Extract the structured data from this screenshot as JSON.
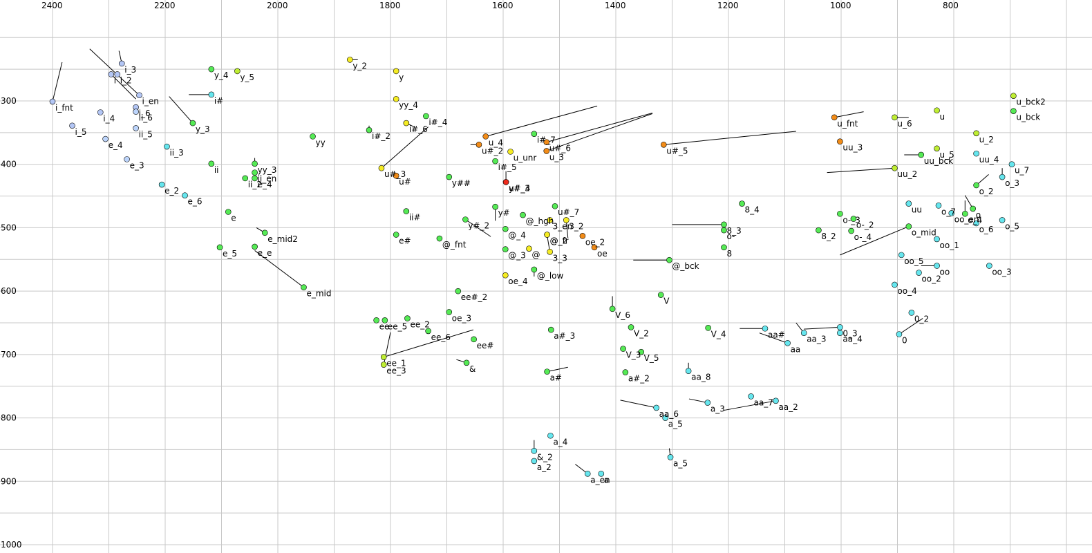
{
  "chart_data": {
    "type": "scatter",
    "title": "",
    "xlabel": "",
    "ylabel": "",
    "x_reversed": true,
    "y_reversed": true,
    "xlim": [
      2450,
      620
    ],
    "ylim": [
      210,
      1000
    ],
    "x_ticks": [
      2400,
      2200,
      2000,
      1800,
      1600,
      1400,
      1200,
      1000,
      800
    ],
    "y_ticks": [
      300,
      400,
      500,
      600,
      700,
      800,
      900,
      1000
    ],
    "x_tick_labels": [
      "2400",
      "2200",
      "2000",
      "1800",
      "1600",
      "1400",
      "1200",
      "1000",
      "800"
    ],
    "y_tick_labels": [
      "300",
      "400",
      "500",
      "600",
      "700",
      "800",
      "900",
      "1000"
    ],
    "grid": true,
    "colors": {
      "blue": "#b3c6f5",
      "lightblue": "#bcd4fb",
      "cyan": "#66e6ee",
      "green": "#55ea55",
      "yellowgreen": "#bfee33",
      "yellow": "#f5ec24",
      "orange": "#f28c18",
      "red": "#ee2a1c"
    },
    "points": [
      {
        "label": "i_fnt",
        "x": 2400,
        "y": 301,
        "color": "blue",
        "tx": 2383,
        "ty": 239
      },
      {
        "label": "i_5",
        "x": 2365,
        "y": 339,
        "color": "blue"
      },
      {
        "label": "i_4",
        "x": 2315,
        "y": 318,
        "color": "blue"
      },
      {
        "label": "i_3",
        "x": 2277,
        "y": 241,
        "color": "blue",
        "tx": 2282,
        "ty": 221
      },
      {
        "label": "i",
        "x": 2296,
        "y": 258,
        "color": "blue",
        "tx": 2252,
        "ty": 297
      },
      {
        "label": "i_2",
        "x": 2285,
        "y": 258,
        "color": "blue"
      },
      {
        "label": "i_en",
        "x": 2246,
        "y": 291,
        "color": "blue",
        "tx": 2334,
        "ty": 218
      },
      {
        "label": "i_6",
        "x": 2252,
        "y": 310,
        "color": "blue"
      },
      {
        "label": "ii_6",
        "x": 2252,
        "y": 317,
        "color": "lightblue"
      },
      {
        "label": "ii_5",
        "x": 2252,
        "y": 343,
        "color": "lightblue"
      },
      {
        "label": "e_4",
        "x": 2306,
        "y": 360,
        "color": "lightblue"
      },
      {
        "label": "ii_3",
        "x": 2197,
        "y": 372,
        "color": "cyan"
      },
      {
        "label": "e_3",
        "x": 2268,
        "y": 392,
        "color": "lightblue"
      },
      {
        "label": "e_2",
        "x": 2206,
        "y": 432,
        "color": "cyan"
      },
      {
        "label": "e_6",
        "x": 2165,
        "y": 449,
        "color": "cyan"
      },
      {
        "label": "y_4",
        "x": 2118,
        "y": 250,
        "color": "green"
      },
      {
        "label": "y_5",
        "x": 2072,
        "y": 253,
        "color": "yellowgreen"
      },
      {
        "label": "i#",
        "x": 2118,
        "y": 290,
        "color": "cyan",
        "tx": 2158,
        "ty": 290
      },
      {
        "label": "y_3",
        "x": 2151,
        "y": 335,
        "color": "green",
        "tx": 2193,
        "ty": 293
      },
      {
        "label": "ii",
        "x": 2118,
        "y": 399,
        "color": "green"
      },
      {
        "label": "yy_3",
        "x": 2041,
        "y": 399,
        "color": "green",
        "tx": 2041,
        "ty": 390
      },
      {
        "label": "ii_en",
        "x": 2041,
        "y": 413,
        "color": "green"
      },
      {
        "label": "ii_2",
        "x": 2058,
        "y": 422,
        "color": "green"
      },
      {
        "label": "e_4",
        "x": 2041,
        "y": 422,
        "color": "green"
      },
      {
        "label": "yy",
        "x": 1938,
        "y": 356,
        "color": "green"
      },
      {
        "label": "e",
        "x": 2088,
        "y": 475,
        "color": "green"
      },
      {
        "label": "e_mid2",
        "x": 2023,
        "y": 508,
        "color": "green",
        "tx": 2038,
        "ty": 500
      },
      {
        "label": "e_5",
        "x": 2103,
        "y": 531,
        "color": "green"
      },
      {
        "label": "e_e",
        "x": 2041,
        "y": 530,
        "color": "green"
      },
      {
        "label": "e_mid",
        "x": 1954,
        "y": 594,
        "color": "green",
        "tx": 2041,
        "ty": 536
      },
      {
        "label": "y_2",
        "x": 1872,
        "y": 235,
        "color": "yellow",
        "tx": 1858,
        "ty": 235
      },
      {
        "label": "y",
        "x": 1790,
        "y": 253,
        "color": "yellow"
      },
      {
        "label": "yy_4",
        "x": 1790,
        "y": 297,
        "color": "yellow"
      },
      {
        "label": "i#_2",
        "x": 1838,
        "y": 346,
        "color": "green",
        "tx": 1838,
        "ty": 339
      },
      {
        "label": "u#_3",
        "x": 1816,
        "y": 406,
        "color": "yellow",
        "tx": 1733,
        "ty": 341
      },
      {
        "label": "u#",
        "x": 1790,
        "y": 418,
        "color": "orange"
      },
      {
        "label": "ii#",
        "x": 1772,
        "y": 474,
        "color": "green"
      },
      {
        "label": "e#",
        "x": 1790,
        "y": 511,
        "color": "green"
      },
      {
        "label": "i#_6",
        "x": 1772,
        "y": 335,
        "color": "yellow",
        "tx": 1758,
        "ty": 341
      },
      {
        "label": "i#_4",
        "x": 1737,
        "y": 324,
        "color": "green"
      },
      {
        "label": "y##",
        "x": 1696,
        "y": 420,
        "color": "green"
      },
      {
        "label": "@_fnt",
        "x": 1713,
        "y": 517,
        "color": "green"
      },
      {
        "label": "oe_3",
        "x": 1696,
        "y": 633,
        "color": "green"
      },
      {
        "label": "ee#_2",
        "x": 1680,
        "y": 600,
        "color": "green"
      },
      {
        "label": "ee_2",
        "x": 1770,
        "y": 643,
        "color": "green"
      },
      {
        "label": "ee_5",
        "x": 1810,
        "y": 646,
        "color": "green"
      },
      {
        "label": "ee",
        "x": 1825,
        "y": 646,
        "color": "green"
      },
      {
        "label": "ee_6",
        "x": 1733,
        "y": 663,
        "color": "green"
      },
      {
        "label": "ee_1",
        "x": 1812,
        "y": 704,
        "color": "yellowgreen",
        "tx": 1653,
        "ty": 661
      },
      {
        "label": "ee_3",
        "x": 1812,
        "y": 716,
        "color": "yellowgreen",
        "tx": 1800,
        "ty": 665
      },
      {
        "label": "ee#",
        "x": 1652,
        "y": 676,
        "color": "green"
      },
      {
        "label": "&",
        "x": 1665,
        "y": 713,
        "color": "green",
        "tx": 1683,
        "ty": 708
      },
      {
        "label": "u_4",
        "x": 1631,
        "y": 356,
        "color": "orange",
        "tx": 1433,
        "ty": 308
      },
      {
        "label": "u#_2",
        "x": 1643,
        "y": 369,
        "color": "orange",
        "tx": 1658,
        "ty": 369
      },
      {
        "label": "u_unr",
        "x": 1587,
        "y": 380,
        "color": "yellow"
      },
      {
        "label": "i#_5",
        "x": 1614,
        "y": 395,
        "color": "green"
      },
      {
        "label": "y#_3",
        "x": 1595,
        "y": 428,
        "color": "red",
        "tx": 1595,
        "ty": 411
      },
      {
        "label": "u#_4",
        "x": 1595,
        "y": 428,
        "color": "red"
      },
      {
        "label": "y#",
        "x": 1614,
        "y": 467,
        "color": "green",
        "tx": 1614,
        "ty": 489
      },
      {
        "label": "y#_2",
        "x": 1667,
        "y": 487,
        "color": "green",
        "tx": 1622,
        "ty": 514
      },
      {
        "label": "@_4",
        "x": 1596,
        "y": 502,
        "color": "green"
      },
      {
        "label": "@_3",
        "x": 1596,
        "y": 534,
        "color": "green"
      },
      {
        "label": "oe_4",
        "x": 1596,
        "y": 575,
        "color": "yellow"
      },
      {
        "label": "@_hgh",
        "x": 1565,
        "y": 480,
        "color": "green"
      },
      {
        "label": "i#_7",
        "x": 1545,
        "y": 352,
        "color": "green"
      },
      {
        "label": "u#_6",
        "x": 1523,
        "y": 365,
        "color": "orange",
        "tx": 1335,
        "ty": 319
      },
      {
        "label": "u_3",
        "x": 1523,
        "y": 379,
        "color": "orange",
        "tx": 1335,
        "ty": 320
      },
      {
        "label": "u#_7",
        "x": 1508,
        "y": 466,
        "color": "green"
      },
      {
        "label": "3_en",
        "x": 1517,
        "y": 488,
        "color": "yellow"
      },
      {
        "label": "3_2",
        "x": 1488,
        "y": 488,
        "color": "yellow",
        "tx": 1485,
        "ty": 516
      },
      {
        "label": "@_2",
        "x": 1522,
        "y": 511,
        "color": "yellow"
      },
      {
        "label": "@_fr",
        "x": 1522,
        "y": 511,
        "color": "yellow"
      },
      {
        "label": "@",
        "x": 1554,
        "y": 533,
        "color": "yellow"
      },
      {
        "label": "3_3",
        "x": 1517,
        "y": 538,
        "color": "yellow",
        "tx": 1522,
        "ty": 512
      },
      {
        "label": "oe_2",
        "x": 1459,
        "y": 513,
        "color": "orange"
      },
      {
        "label": "oe",
        "x": 1438,
        "y": 531,
        "color": "orange"
      },
      {
        "label": "@_low",
        "x": 1545,
        "y": 566,
        "color": "green",
        "tx": 1545,
        "ty": 577
      },
      {
        "label": "a#_3",
        "x": 1515,
        "y": 661,
        "color": "green"
      },
      {
        "label": "a#",
        "x": 1522,
        "y": 727,
        "color": "green",
        "tx": 1485,
        "ty": 720
      },
      {
        "label": "a_4",
        "x": 1516,
        "y": 828,
        "color": "cyan"
      },
      {
        "label": "&_2",
        "x": 1545,
        "y": 852,
        "color": "cyan",
        "tx": 1545,
        "ty": 835
      },
      {
        "label": "a_2",
        "x": 1545,
        "y": 868,
        "color": "cyan"
      },
      {
        "label": "a_en",
        "x": 1450,
        "y": 888,
        "color": "cyan",
        "tx": 1472,
        "ty": 873
      },
      {
        "label": "a",
        "x": 1426,
        "y": 888,
        "color": "cyan"
      },
      {
        "label": "u#_5",
        "x": 1315,
        "y": 369,
        "color": "orange",
        "tx": 1080,
        "ty": 348
      },
      {
        "label": "8_4",
        "x": 1176,
        "y": 462,
        "color": "green"
      },
      {
        "label": "8_3",
        "x": 1208,
        "y": 495,
        "color": "green",
        "tx": 1300,
        "ty": 495
      },
      {
        "label": "o-",
        "x": 1208,
        "y": 504,
        "color": "green"
      },
      {
        "label": "8",
        "x": 1208,
        "y": 531,
        "color": "green"
      },
      {
        "label": "@_bck",
        "x": 1305,
        "y": 551,
        "color": "green",
        "tx": 1369,
        "ty": 551
      },
      {
        "label": "V",
        "x": 1320,
        "y": 606,
        "color": "green",
        "tx": 1320,
        "ty": 602
      },
      {
        "label": "V_6",
        "x": 1406,
        "y": 628,
        "color": "green",
        "tx": 1406,
        "ty": 608
      },
      {
        "label": "V_2",
        "x": 1373,
        "y": 657,
        "color": "green"
      },
      {
        "label": "V_4",
        "x": 1236,
        "y": 658,
        "color": "green"
      },
      {
        "label": "V_3",
        "x": 1387,
        "y": 691,
        "color": "green"
      },
      {
        "label": "V_5",
        "x": 1355,
        "y": 696,
        "color": "green"
      },
      {
        "label": "a#_2",
        "x": 1383,
        "y": 728,
        "color": "green"
      },
      {
        "label": "aa_8",
        "x": 1271,
        "y": 726,
        "color": "cyan",
        "tx": 1271,
        "ty": 713
      },
      {
        "label": "a_3",
        "x": 1237,
        "y": 776,
        "color": "cyan",
        "tx": 1270,
        "ty": 770
      },
      {
        "label": "aa_6",
        "x": 1328,
        "y": 784,
        "color": "cyan",
        "tx": 1392,
        "ty": 772
      },
      {
        "label": "a_5",
        "x": 1312,
        "y": 800,
        "color": "cyan"
      },
      {
        "label": "a_5",
        "x": 1303,
        "y": 862,
        "color": "cyan",
        "tx": 1305,
        "ty": 848
      },
      {
        "label": "aa_7",
        "x": 1160,
        "y": 766,
        "color": "cyan"
      },
      {
        "label": "aa_2",
        "x": 1116,
        "y": 773,
        "color": "cyan",
        "tx": 1208,
        "ty": 788
      },
      {
        "label": "aa#",
        "x": 1135,
        "y": 659,
        "color": "cyan",
        "tx": 1180,
        "ty": 659
      },
      {
        "label": "aa_3",
        "x": 1066,
        "y": 666,
        "color": "cyan",
        "tx": 1080,
        "ty": 650
      },
      {
        "label": "aa",
        "x": 1095,
        "y": 682,
        "color": "cyan",
        "tx": 1145,
        "ty": 666
      },
      {
        "label": "0_3",
        "x": 1002,
        "y": 657,
        "color": "cyan",
        "tx": 1066,
        "ty": 660
      },
      {
        "label": "aa_4",
        "x": 1002,
        "y": 666,
        "color": "cyan"
      },
      {
        "label": "0",
        "x": 897,
        "y": 668,
        "color": "cyan",
        "tx": 855,
        "ty": 643
      },
      {
        "label": "0_2",
        "x": 875,
        "y": 634,
        "color": "cyan"
      },
      {
        "label": "u_fnt",
        "x": 1012,
        "y": 326,
        "color": "orange",
        "tx": 960,
        "ty": 317
      },
      {
        "label": "uu_3",
        "x": 1002,
        "y": 364,
        "color": "orange"
      },
      {
        "label": "u_6",
        "x": 905,
        "y": 326,
        "color": "yellowgreen",
        "tx": 880,
        "ty": 326
      },
      {
        "label": "uu_2",
        "x": 905,
        "y": 406,
        "color": "yellowgreen",
        "tx": 1025,
        "ty": 413
      },
      {
        "label": "u",
        "x": 830,
        "y": 315,
        "color": "yellowgreen"
      },
      {
        "label": "u_5",
        "x": 830,
        "y": 375,
        "color": "yellowgreen"
      },
      {
        "label": "uu_bck",
        "x": 858,
        "y": 385,
        "color": "green",
        "tx": 888,
        "ty": 385
      },
      {
        "label": "o-_3",
        "x": 1002,
        "y": 478,
        "color": "green"
      },
      {
        "label": "o-_2",
        "x": 978,
        "y": 486,
        "color": "green"
      },
      {
        "label": "o-_4",
        "x": 982,
        "y": 505,
        "color": "green"
      },
      {
        "label": "8_2",
        "x": 1040,
        "y": 504,
        "color": "green"
      },
      {
        "label": "o_mid",
        "x": 880,
        "y": 498,
        "color": "green",
        "tx": 1002,
        "ty": 543
      },
      {
        "label": "uu",
        "x": 880,
        "y": 462,
        "color": "cyan"
      },
      {
        "label": "o_7",
        "x": 827,
        "y": 465,
        "color": "cyan"
      },
      {
        "label": "oo_en",
        "x": 804,
        "y": 477,
        "color": "cyan",
        "tx": 804,
        "ty": 477
      },
      {
        "label": "o_4",
        "x": 780,
        "y": 478,
        "color": "green",
        "tx": 780,
        "ty": 457
      },
      {
        "label": "o",
        "x": 766,
        "y": 470,
        "color": "green",
        "tx": 780,
        "ty": 449
      },
      {
        "label": "o_6",
        "x": 760,
        "y": 493,
        "color": "cyan"
      },
      {
        "label": "oo_1",
        "x": 830,
        "y": 518,
        "color": "cyan"
      },
      {
        "label": "oo_5",
        "x": 893,
        "y": 543,
        "color": "cyan"
      },
      {
        "label": "oo",
        "x": 830,
        "y": 560,
        "color": "cyan",
        "tx": 858,
        "ty": 560
      },
      {
        "label": "oo_2",
        "x": 862,
        "y": 571,
        "color": "cyan"
      },
      {
        "label": "oo_4",
        "x": 905,
        "y": 590,
        "color": "cyan"
      },
      {
        "label": "o_2",
        "x": 760,
        "y": 433,
        "color": "green",
        "tx": 738,
        "ty": 416
      },
      {
        "label": "o_3",
        "x": 714,
        "y": 420,
        "color": "cyan",
        "tx": 714,
        "ty": 406
      },
      {
        "label": "o_5",
        "x": 714,
        "y": 488,
        "color": "cyan"
      },
      {
        "label": "oo_3",
        "x": 737,
        "y": 560,
        "color": "cyan"
      },
      {
        "label": "u_2",
        "x": 760,
        "y": 351,
        "color": "yellowgreen"
      },
      {
        "label": "uu_4",
        "x": 760,
        "y": 383,
        "color": "cyan"
      },
      {
        "label": "u_7",
        "x": 697,
        "y": 400,
        "color": "cyan"
      },
      {
        "label": "u_bck2",
        "x": 694,
        "y": 292,
        "color": "yellowgreen"
      },
      {
        "label": "u_bck",
        "x": 694,
        "y": 316,
        "color": "green"
      }
    ]
  }
}
